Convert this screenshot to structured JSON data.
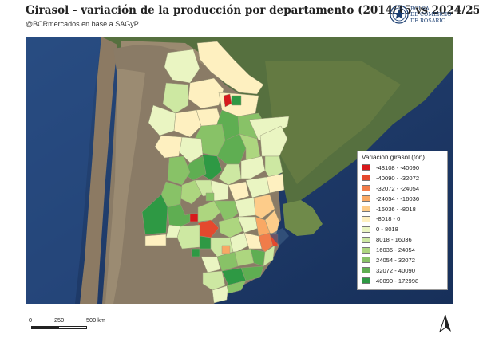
{
  "header": {
    "title": "Girasol - variación de la producción por departamento (2014/15 vs 2024/25)",
    "subtitle": "@BCRmercados en base a SAGyP"
  },
  "brand": {
    "lines": [
      "BOLSA",
      "DE COMERCIO",
      "DE ROSARIO"
    ],
    "color": "#1c3f72"
  },
  "legend": {
    "title": "Variacion girasol (ton)",
    "items": [
      {
        "label": "-48108 - -40090",
        "color": "#d7191c"
      },
      {
        "label": "-40090 - -32072",
        "color": "#e4492e"
      },
      {
        "label": "-32072 - -24054",
        "color": "#f07c4a"
      },
      {
        "label": "-24054 - -16036",
        "color": "#f9a864"
      },
      {
        "label": "-16036 - -8018",
        "color": "#fdcc8a"
      },
      {
        "label": "-8018 - 0",
        "color": "#fef0c0"
      },
      {
        "label": "0 - 8018",
        "color": "#eaf5c2"
      },
      {
        "label": "8018 - 16036",
        "color": "#cde8a2"
      },
      {
        "label": "16036 - 24054",
        "color": "#add67f"
      },
      {
        "label": "24054 - 32072",
        "color": "#88c267"
      },
      {
        "label": "32072 - 40090",
        "color": "#5fae52"
      },
      {
        "label": "40090 - 172998",
        "color": "#2e9944"
      }
    ]
  },
  "scale_bar": {
    "labels": [
      "0",
      "250",
      "500 km"
    ]
  },
  "north_arrow": {
    "icon": "north-arrow-icon"
  },
  "map": {
    "ocean_color": "#1e3a66",
    "land_color": "#8a7b66",
    "neighbor_land_color": "#4c6a3a"
  }
}
